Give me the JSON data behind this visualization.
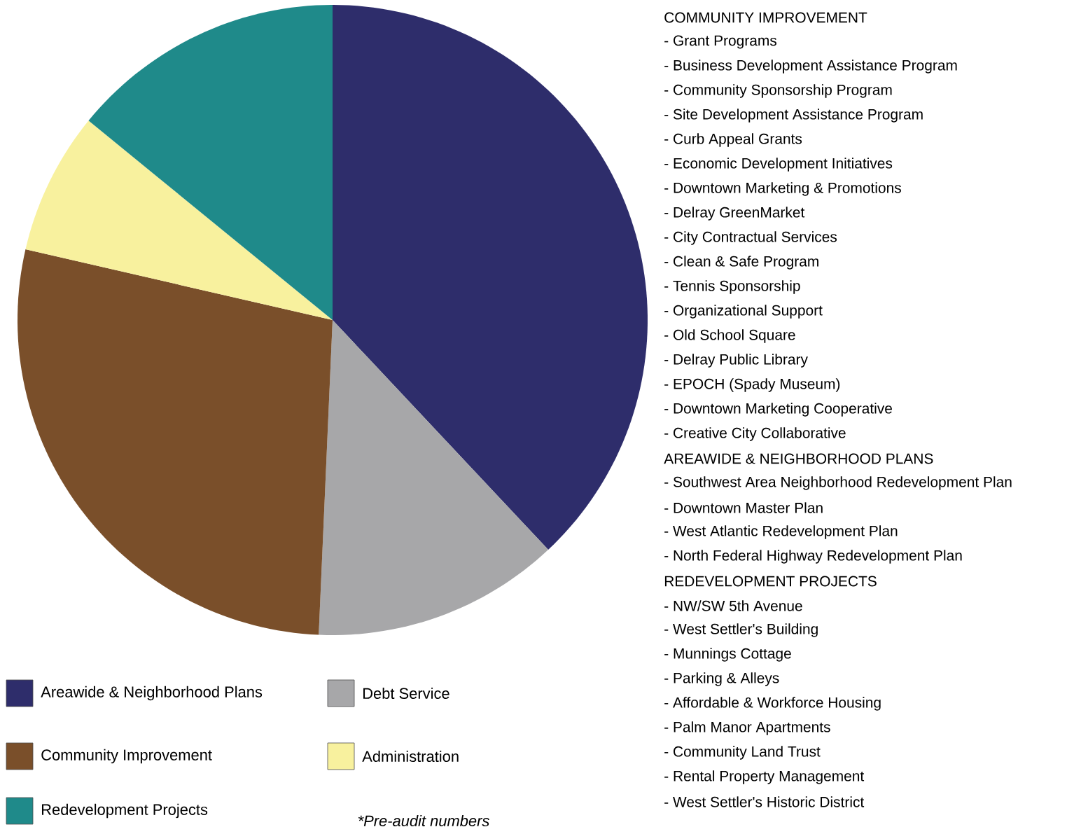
{
  "chart_data": {
    "type": "pie",
    "categories": [
      "Areawide & Neighborhood Plans",
      "Debt Service",
      "Community Improvement",
      "Administration",
      "Redevelopment Projects"
    ],
    "values": [
      38.0,
      12.7,
      27.9,
      7.3,
      14.1
    ],
    "colors": [
      "#2e2d6b",
      "#a7a7a9",
      "#7a4f2a",
      "#f8f19e",
      "#1f8a8a"
    ],
    "legend": "bottom",
    "annotations": [
      "COMMUNITY IMPROVEMENT",
      "- Grant Programs",
      "- Business Development Assistance Program",
      "- Community Sponsorship Program",
      "- Site Development Assistance Program",
      "- Curb Appeal Grants",
      "- Economic Development Initiatives",
      "- Downtown Marketing & Promotions",
      "- Delray GreenMarket",
      "- City Contractual Services",
      "- Clean & Safe Program",
      "- Tennis Sponsorship",
      "- Organizational Support",
      "- Old School Square",
      "- Delray Public Library",
      "- EPOCH (Spady Museum)",
      "- Downtown Marketing Cooperative",
      "- Creative City Collaborative",
      "AREAWIDE & NEIGHBORHOOD PLANS",
      "- Southwest Area Neighborhood Redevelopment Plan",
      "- Downtown Master Plan",
      "- West Atlantic Redevelopment Plan",
      "- North Federal Highway Redevelopment Plan",
      "REDEVELOPMENT PROJECTS",
      "- NW/SW 5th Avenue",
      "- West Settler's Building",
      "- Munnings Cottage",
      "- Parking & Alleys",
      "- Affordable & Workforce Housing",
      "- Palm Manor Apartments",
      "- Community Land Trust",
      "- Rental Property Management",
      "- West Settler's Historic District",
      "*Pre-audit numbers"
    ]
  }
}
